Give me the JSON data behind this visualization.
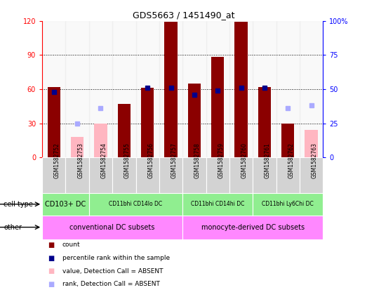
{
  "title": "GDS5663 / 1451490_at",
  "samples": [
    "GSM1582752",
    "GSM1582753",
    "GSM1582754",
    "GSM1582755",
    "GSM1582756",
    "GSM1582757",
    "GSM1582758",
    "GSM1582759",
    "GSM1582760",
    "GSM1582761",
    "GSM1582762",
    "GSM1582763"
  ],
  "count_values": [
    62,
    null,
    null,
    47,
    61,
    119,
    65,
    88,
    119,
    62,
    30,
    null
  ],
  "count_absent": [
    null,
    18,
    30,
    null,
    null,
    null,
    null,
    null,
    null,
    null,
    null,
    24
  ],
  "rank_values": [
    48,
    null,
    null,
    null,
    51,
    51,
    46,
    49,
    51,
    51,
    null,
    null
  ],
  "rank_absent": [
    null,
    25,
    36,
    null,
    null,
    null,
    null,
    null,
    null,
    null,
    36,
    38
  ],
  "left_ylim": [
    0,
    120
  ],
  "right_ylim": [
    0,
    100
  ],
  "left_yticks": [
    0,
    30,
    60,
    90,
    120
  ],
  "right_yticks": [
    0,
    25,
    50,
    75,
    100
  ],
  "right_yticklabels": [
    "0",
    "25",
    "50",
    "75",
    "100%"
  ],
  "bar_color": "#8B0000",
  "bar_absent_color": "#FFB6C1",
  "rank_color": "#00008B",
  "rank_absent_color": "#AAAAFF",
  "group_starts": [
    0,
    2,
    6,
    9
  ],
  "group_ends": [
    2,
    6,
    9,
    12
  ],
  "group_labels": [
    "CD103+ DC",
    "CD11bhi CD14lo DC",
    "CD11bhi CD14hi DC",
    "CD11bhi Ly6Chi DC"
  ],
  "group_color": "#90EE90",
  "other_starts": [
    0,
    6
  ],
  "other_ends": [
    6,
    12
  ],
  "other_labels": [
    "conventional DC subsets",
    "monocyte-derived DC subsets"
  ],
  "other_color": "#FF88FF",
  "legend_items": [
    {
      "label": "count",
      "color": "#8B0000"
    },
    {
      "label": "percentile rank within the sample",
      "color": "#00008B"
    },
    {
      "label": "value, Detection Call = ABSENT",
      "color": "#FFB6C1"
    },
    {
      "label": "rank, Detection Call = ABSENT",
      "color": "#AAAAFF"
    }
  ]
}
